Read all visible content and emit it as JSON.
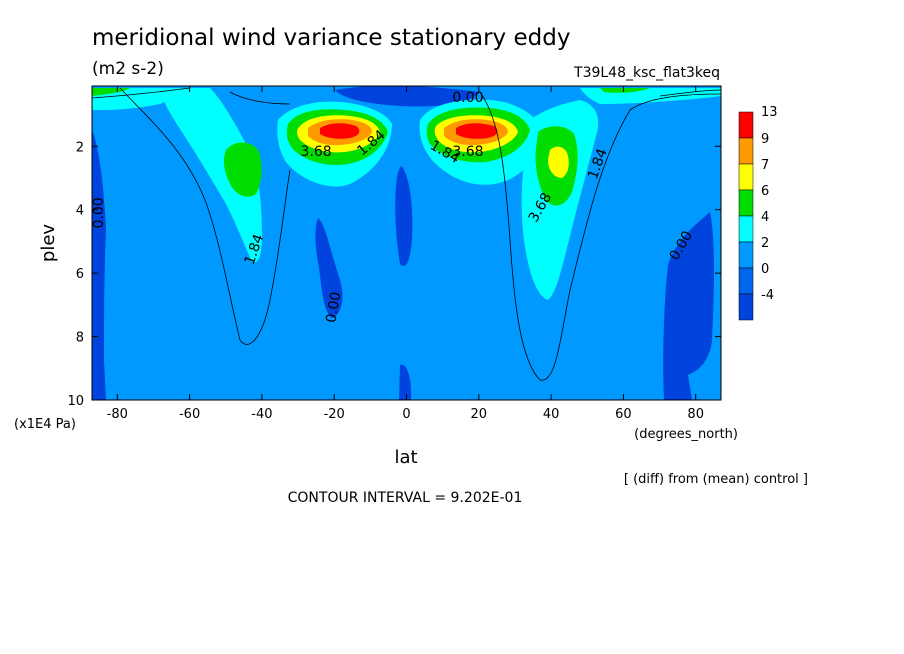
{
  "chart_data": {
    "type": "contour",
    "title": "meridional wind variance  stationary eddy",
    "units": "(m2 s-2)",
    "run_label": "T39L48_ksc_flat3keq",
    "xlabel": "lat",
    "xunits": "(degrees_north)",
    "ylabel": "plev",
    "yunits": "(x1E4 Pa)",
    "xlim": [
      -87,
      87
    ],
    "ylim": [
      10,
      0.1
    ],
    "x_ticks": [
      "-80",
      "-60",
      "-40",
      "-20",
      "0",
      "20",
      "40",
      "60",
      "80"
    ],
    "x_tick_values": [
      -80,
      -60,
      -40,
      -20,
      0,
      20,
      40,
      60,
      80
    ],
    "y_ticks": [
      "2",
      "4",
      "6",
      "8",
      "10"
    ],
    "y_tick_values": [
      2,
      4,
      6,
      8,
      10
    ],
    "colorbar_levels": [
      "13",
      "9",
      "7",
      "6",
      "4",
      "2",
      "0",
      "-4"
    ],
    "colorbar_colors": [
      "#ff0000",
      "#ff9900",
      "#ffff00",
      "#00dd00",
      "#00ffff",
      "#0099ff",
      "#0066ee",
      "#0044dd"
    ],
    "fill_colors": {
      "background": "#0099ff",
      "negative": "#0044dd",
      "light": "#00ffff",
      "green": "#00dd00",
      "yellow": "#ffff00",
      "orange": "#ff9900",
      "red": "#ff0000"
    },
    "contour_labels": [
      {
        "text": "0.00",
        "lat": 17,
        "plev": 0.6,
        "angle": 0
      },
      {
        "text": "1.84",
        "lat": -9,
        "plev": 2.0,
        "angle": -40
      },
      {
        "text": "3.68",
        "lat": -25,
        "plev": 2.3,
        "angle": 0
      },
      {
        "text": "3.68",
        "lat": 17,
        "plev": 2.3,
        "angle": 0
      },
      {
        "text": "1.84",
        "lat": 10,
        "plev": 2.3,
        "angle": 30
      },
      {
        "text": "1.84",
        "lat": 54,
        "plev": 2.6,
        "angle": -70
      },
      {
        "text": "3.68",
        "lat": 38,
        "plev": 4.0,
        "angle": -60
      },
      {
        "text": "0.00",
        "lat": -84,
        "plev": 4.1,
        "angle": -90
      },
      {
        "text": "1.84",
        "lat": -41,
        "plev": 5.3,
        "angle": -70
      },
      {
        "text": "0.00",
        "lat": -19,
        "plev": 7.1,
        "angle": -80
      },
      {
        "text": "0.00",
        "lat": 77,
        "plev": 5.2,
        "angle": -60
      }
    ],
    "contour_interval_text": "CONTOUR INTERVAL = 9.202E-01",
    "diff_text": "[ (diff) from (mean) control ]"
  }
}
